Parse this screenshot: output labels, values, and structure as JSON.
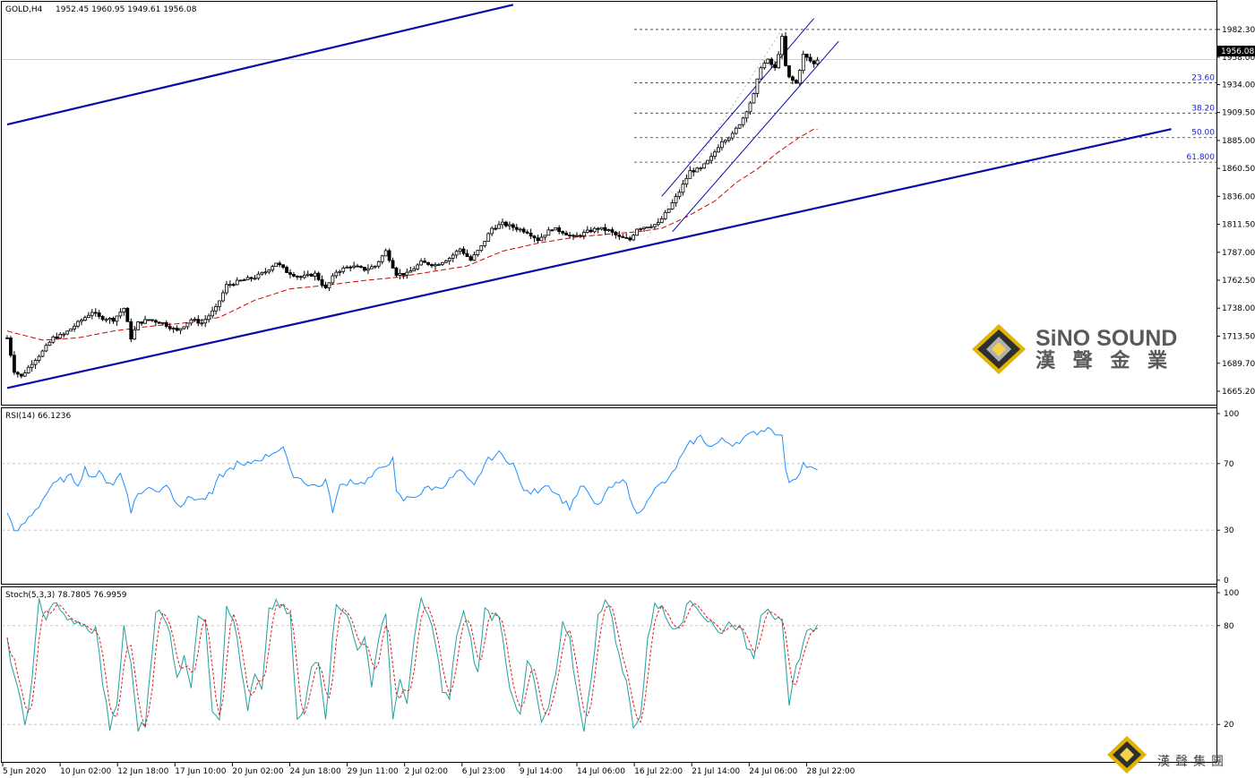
{
  "header": {
    "symbol": "GOLD,H4",
    "ohlc": "1952.45 1960.95 1949.61 1956.08"
  },
  "colors": {
    "background": "#ffffff",
    "candle": "#000000",
    "trendline": "#0a0aa8",
    "ma": "#d40000",
    "rsi": "#1e90ff",
    "stoch_main": "#20a0a0",
    "stoch_signal": "#e02020",
    "grid": "#c0c0c0",
    "fib_text": "#1a1ae6"
  },
  "chart_data": [
    {
      "type": "candlestick",
      "title": "GOLD,H4",
      "ohlc_label": "1952.45 1960.95 1949.61 1956.08",
      "current_price": "1956.08",
      "ylim": [
        1655,
        2005
      ],
      "y_ticks": [
        "1982.30",
        "1958.00",
        "1934.00",
        "1909.50",
        "1885.00",
        "1860.50",
        "1836.00",
        "1811.50",
        "1787.00",
        "1762.50",
        "1738.00",
        "1713.50",
        "1689.70",
        "1665.20"
      ],
      "x_labels": [
        "5 Jun 2020",
        "10 Jun 02:00",
        "12 Jun 18:00",
        "17 Jun 10:00",
        "20 Jun 02:00",
        "24 Jun 18:00",
        "29 Jun 11:00",
        "2 Jul 02:00",
        "6 Jul 23:00",
        "9 Jul 14:00",
        "14 Jul 06:00",
        "16 Jul 22:00",
        "21 Jul 14:00",
        "24 Jul 06:00",
        "28 Jul 22:00"
      ],
      "close_anchors": [
        [
          0,
          1712
        ],
        [
          2,
          1683
        ],
        [
          4,
          1678
        ],
        [
          7,
          1690
        ],
        [
          10,
          1700
        ],
        [
          13,
          1712
        ],
        [
          16,
          1715
        ],
        [
          20,
          1725
        ],
        [
          24,
          1735
        ],
        [
          26,
          1730
        ],
        [
          30,
          1728
        ],
        [
          33,
          1738
        ],
        [
          35,
          1712
        ],
        [
          37,
          1725
        ],
        [
          40,
          1728
        ],
        [
          44,
          1725
        ],
        [
          48,
          1718
        ],
        [
          52,
          1728
        ],
        [
          55,
          1725
        ],
        [
          59,
          1738
        ],
        [
          62,
          1758
        ],
        [
          66,
          1762
        ],
        [
          70,
          1765
        ],
        [
          73,
          1770
        ],
        [
          76,
          1778
        ],
        [
          79,
          1770
        ],
        [
          83,
          1765
        ],
        [
          87,
          1768
        ],
        [
          90,
          1755
        ],
        [
          93,
          1770
        ],
        [
          97,
          1775
        ],
        [
          101,
          1772
        ],
        [
          104,
          1775
        ],
        [
          107,
          1788
        ],
        [
          110,
          1768
        ],
        [
          113,
          1768
        ],
        [
          117,
          1778
        ],
        [
          121,
          1776
        ],
        [
          125,
          1782
        ],
        [
          128,
          1790
        ],
        [
          131,
          1780
        ],
        [
          134,
          1792
        ],
        [
          137,
          1808
        ],
        [
          140,
          1812
        ],
        [
          144,
          1808
        ],
        [
          147,
          1805
        ],
        [
          150,
          1798
        ],
        [
          154,
          1808
        ],
        [
          157,
          1805
        ],
        [
          160,
          1800
        ],
        [
          164,
          1805
        ],
        [
          167,
          1808
        ],
        [
          170,
          1806
        ],
        [
          173,
          1800
        ],
        [
          176,
          1798
        ],
        [
          178,
          1808
        ],
        [
          181,
          1810
        ],
        [
          184,
          1812
        ],
        [
          187,
          1825
        ],
        [
          190,
          1840
        ],
        [
          193,
          1858
        ],
        [
          196,
          1860
        ],
        [
          199,
          1870
        ],
        [
          202,
          1885
        ],
        [
          205,
          1890
        ],
        [
          208,
          1905
        ],
        [
          211,
          1925
        ],
        [
          213,
          1950
        ],
        [
          215,
          1955
        ],
        [
          217,
          1948
        ],
        [
          219,
          1975
        ],
        [
          220,
          1950
        ],
        [
          221,
          1940
        ],
        [
          223,
          1935
        ],
        [
          225,
          1960
        ],
        [
          228,
          1952
        ],
        [
          229,
          1956
        ]
      ],
      "ma_anchors": [
        [
          0,
          1718
        ],
        [
          10,
          1710
        ],
        [
          20,
          1712
        ],
        [
          30,
          1718
        ],
        [
          40,
          1722
        ],
        [
          50,
          1725
        ],
        [
          60,
          1730
        ],
        [
          70,
          1745
        ],
        [
          80,
          1755
        ],
        [
          90,
          1758
        ],
        [
          100,
          1762
        ],
        [
          110,
          1765
        ],
        [
          120,
          1770
        ],
        [
          130,
          1775
        ],
        [
          140,
          1788
        ],
        [
          150,
          1795
        ],
        [
          160,
          1800
        ],
        [
          170,
          1803
        ],
        [
          178,
          1805
        ],
        [
          185,
          1808
        ],
        [
          192,
          1818
        ],
        [
          200,
          1832
        ],
        [
          206,
          1848
        ],
        [
          212,
          1860
        ],
        [
          218,
          1875
        ],
        [
          224,
          1888
        ],
        [
          228,
          1895
        ]
      ],
      "trendlines": [
        {
          "name": "upper-channel",
          "from": [
            0,
            1899
          ],
          "to": [
            143,
            2004
          ]
        },
        {
          "name": "lower-channel",
          "from": [
            0,
            1668
          ],
          "to": [
            329,
            1895
          ]
        },
        {
          "name": "short-channel-upper",
          "from": [
            185,
            1836
          ],
          "to": [
            228,
            1992
          ]
        },
        {
          "name": "short-channel-lower",
          "from": [
            188,
            1805
          ],
          "to": [
            235,
            1972
          ]
        }
      ],
      "fibonacci": [
        {
          "label": "",
          "price": 1982.3
        },
        {
          "label": "23.60",
          "price": 1935.5
        },
        {
          "label": "38.20",
          "price": 1909.0
        },
        {
          "label": "50.00",
          "price": 1887.5
        },
        {
          "label": "61.800",
          "price": 1866.0
        }
      ],
      "watermark": {
        "brand_en": "SiNO SOUND",
        "brand_cn": "漢 聲 金 業"
      }
    },
    {
      "type": "line",
      "title": "RSI(14) 66.1236",
      "ylim": [
        0,
        100
      ],
      "y_ticks": [
        "100",
        "70",
        "30",
        "0"
      ],
      "levels": [
        70,
        30
      ],
      "anchors": [
        [
          0,
          42
        ],
        [
          2,
          28
        ],
        [
          4,
          32
        ],
        [
          7,
          40
        ],
        [
          9,
          45
        ],
        [
          12,
          55
        ],
        [
          15,
          60
        ],
        [
          18,
          62
        ],
        [
          20,
          58
        ],
        [
          22,
          67
        ],
        [
          24,
          62
        ],
        [
          26,
          64
        ],
        [
          28,
          60
        ],
        [
          30,
          58
        ],
        [
          32,
          64
        ],
        [
          34,
          52
        ],
        [
          35,
          42
        ],
        [
          37,
          52
        ],
        [
          40,
          55
        ],
        [
          43,
          54
        ],
        [
          45,
          58
        ],
        [
          47,
          50
        ],
        [
          49,
          45
        ],
        [
          52,
          50
        ],
        [
          55,
          48
        ],
        [
          58,
          52
        ],
        [
          60,
          62
        ],
        [
          62,
          65
        ],
        [
          65,
          70
        ],
        [
          67,
          68
        ],
        [
          70,
          72
        ],
        [
          73,
          74
        ],
        [
          76,
          78
        ],
        [
          78,
          80
        ],
        [
          80,
          65
        ],
        [
          82,
          62
        ],
        [
          85,
          58
        ],
        [
          88,
          56
        ],
        [
          90,
          60
        ],
        [
          92,
          42
        ],
        [
          94,
          56
        ],
        [
          97,
          60
        ],
        [
          100,
          58
        ],
        [
          103,
          62
        ],
        [
          105,
          66
        ],
        [
          107,
          70
        ],
        [
          109,
          72
        ],
        [
          110,
          52
        ],
        [
          112,
          48
        ],
        [
          114,
          50
        ],
        [
          117,
          52
        ],
        [
          119,
          56
        ],
        [
          121,
          55
        ],
        [
          124,
          58
        ],
        [
          126,
          62
        ],
        [
          128,
          66
        ],
        [
          130,
          60
        ],
        [
          132,
          56
        ],
        [
          135,
          70
        ],
        [
          137,
          74
        ],
        [
          139,
          76
        ],
        [
          141,
          73
        ],
        [
          143,
          70
        ],
        [
          145,
          58
        ],
        [
          147,
          52
        ],
        [
          150,
          54
        ],
        [
          152,
          58
        ],
        [
          154,
          55
        ],
        [
          157,
          48
        ],
        [
          159,
          44
        ],
        [
          161,
          52
        ],
        [
          163,
          57
        ],
        [
          165,
          48
        ],
        [
          167,
          44
        ],
        [
          169,
          52
        ],
        [
          171,
          56
        ],
        [
          173,
          58
        ],
        [
          175,
          60
        ],
        [
          177,
          42
        ],
        [
          179,
          40
        ],
        [
          181,
          50
        ],
        [
          183,
          54
        ],
        [
          185,
          58
        ],
        [
          187,
          60
        ],
        [
          190,
          72
        ],
        [
          193,
          82
        ],
        [
          196,
          86
        ],
        [
          199,
          80
        ],
        [
          202,
          84
        ],
        [
          205,
          82
        ],
        [
          208,
          85
        ],
        [
          211,
          88
        ],
        [
          213,
          90
        ],
        [
          216,
          92
        ],
        [
          218,
          86
        ],
        [
          219,
          88
        ],
        [
          220,
          65
        ],
        [
          221,
          60
        ],
        [
          223,
          62
        ],
        [
          225,
          70
        ],
        [
          227,
          67
        ],
        [
          228,
          66
        ]
      ]
    },
    {
      "type": "line",
      "title": "Stoch(5,3,3) 78.7805 76.9959",
      "ylim": [
        0,
        100
      ],
      "y_ticks": [
        "100",
        "80",
        "20"
      ],
      "levels": [
        80,
        20
      ],
      "series": [
        {
          "name": "%K",
          "value": "78.7805"
        },
        {
          "name": "%D",
          "value": "76.9959"
        }
      ],
      "anchors": [
        [
          0,
          70
        ],
        [
          3,
          40
        ],
        [
          5,
          20
        ],
        [
          7,
          45
        ],
        [
          9,
          95
        ],
        [
          11,
          85
        ],
        [
          13,
          95
        ],
        [
          15,
          88
        ],
        [
          17,
          85
        ],
        [
          19,
          80
        ],
        [
          21,
          82
        ],
        [
          23,
          75
        ],
        [
          25,
          80
        ],
        [
          27,
          45
        ],
        [
          29,
          18
        ],
        [
          31,
          30
        ],
        [
          33,
          80
        ],
        [
          35,
          55
        ],
        [
          37,
          18
        ],
        [
          39,
          20
        ],
        [
          42,
          90
        ],
        [
          44,
          85
        ],
        [
          46,
          75
        ],
        [
          48,
          50
        ],
        [
          50,
          60
        ],
        [
          52,
          45
        ],
        [
          54,
          88
        ],
        [
          56,
          80
        ],
        [
          58,
          30
        ],
        [
          60,
          25
        ],
        [
          62,
          93
        ],
        [
          64,
          85
        ],
        [
          66,
          55
        ],
        [
          68,
          30
        ],
        [
          70,
          50
        ],
        [
          72,
          40
        ],
        [
          74,
          88
        ],
        [
          76,
          95
        ],
        [
          78,
          90
        ],
        [
          80,
          85
        ],
        [
          82,
          22
        ],
        [
          84,
          28
        ],
        [
          86,
          55
        ],
        [
          88,
          60
        ],
        [
          90,
          25
        ],
        [
          93,
          95
        ],
        [
          95,
          90
        ],
        [
          97,
          80
        ],
        [
          99,
          65
        ],
        [
          101,
          75
        ],
        [
          103,
          40
        ],
        [
          105,
          75
        ],
        [
          107,
          88
        ],
        [
          109,
          25
        ],
        [
          111,
          45
        ],
        [
          113,
          35
        ],
        [
          115,
          70
        ],
        [
          117,
          96
        ],
        [
          119,
          85
        ],
        [
          121,
          72
        ],
        [
          123,
          40
        ],
        [
          125,
          35
        ],
        [
          127,
          75
        ],
        [
          129,
          88
        ],
        [
          131,
          70
        ],
        [
          133,
          50
        ],
        [
          135,
          90
        ],
        [
          137,
          85
        ],
        [
          139,
          88
        ],
        [
          141,
          55
        ],
        [
          143,
          35
        ],
        [
          145,
          28
        ],
        [
          147,
          60
        ],
        [
          149,
          45
        ],
        [
          151,
          20
        ],
        [
          153,
          30
        ],
        [
          155,
          50
        ],
        [
          157,
          80
        ],
        [
          159,
          70
        ],
        [
          161,
          40
        ],
        [
          163,
          18
        ],
        [
          165,
          45
        ],
        [
          167,
          88
        ],
        [
          169,
          95
        ],
        [
          171,
          85
        ],
        [
          173,
          60
        ],
        [
          175,
          45
        ],
        [
          177,
          20
        ],
        [
          179,
          25
        ],
        [
          181,
          70
        ],
        [
          183,
          95
        ],
        [
          185,
          90
        ],
        [
          187,
          82
        ],
        [
          189,
          80
        ],
        [
          191,
          85
        ],
        [
          193,
          95
        ],
        [
          195,
          92
        ],
        [
          197,
          85
        ],
        [
          199,
          82
        ],
        [
          201,
          75
        ],
        [
          203,
          80
        ],
        [
          205,
          82
        ],
        [
          207,
          78
        ],
        [
          209,
          68
        ],
        [
          211,
          62
        ],
        [
          213,
          88
        ],
        [
          215,
          92
        ],
        [
          217,
          85
        ],
        [
          219,
          80
        ],
        [
          221,
          30
        ],
        [
          223,
          55
        ],
        [
          225,
          70
        ],
        [
          227,
          80
        ],
        [
          228,
          79
        ]
      ]
    }
  ]
}
